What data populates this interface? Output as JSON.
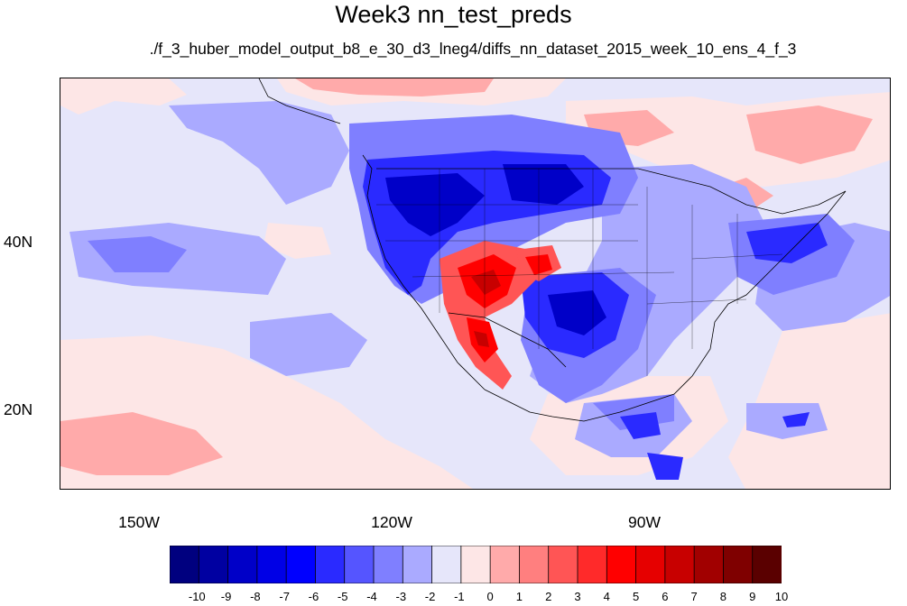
{
  "title": "Week3 nn_test_preds",
  "subtitle": "./f_3_huber_model_output_b8_e_30_d3_lneg4/diffs_nn_dataset_2015_week_10_ens_4_f_3",
  "map": {
    "lat_labels": [
      "40N",
      "20N"
    ],
    "lon_labels": [
      "150W",
      "120W",
      "90W"
    ],
    "lat_values": [
      40,
      20
    ],
    "lon_values": [
      -150,
      -120,
      -90
    ],
    "extent": {
      "lon_min": -159,
      "lon_max": -61,
      "lat_min": 11,
      "lat_max": 60
    }
  },
  "colorbar": {
    "labels": [
      "-10",
      "-9",
      "-8",
      "-7",
      "-6",
      "-5",
      "-4",
      "-3",
      "-2",
      "-1",
      "0",
      "1",
      "2",
      "3",
      "4",
      "5",
      "6",
      "7",
      "8",
      "9",
      "10"
    ],
    "colors": [
      "#00007f",
      "#0000a1",
      "#0000c8",
      "#0000e6",
      "#0000ff",
      "#2a2aff",
      "#5555ff",
      "#7f7fff",
      "#aaaaff",
      "#e6e6fa",
      "#fde6e6",
      "#ffaaaa",
      "#ff7f7f",
      "#ff5555",
      "#ff2a2a",
      "#ff0000",
      "#e60000",
      "#c80000",
      "#a10000",
      "#7f0000",
      "#5a0000"
    ]
  }
}
